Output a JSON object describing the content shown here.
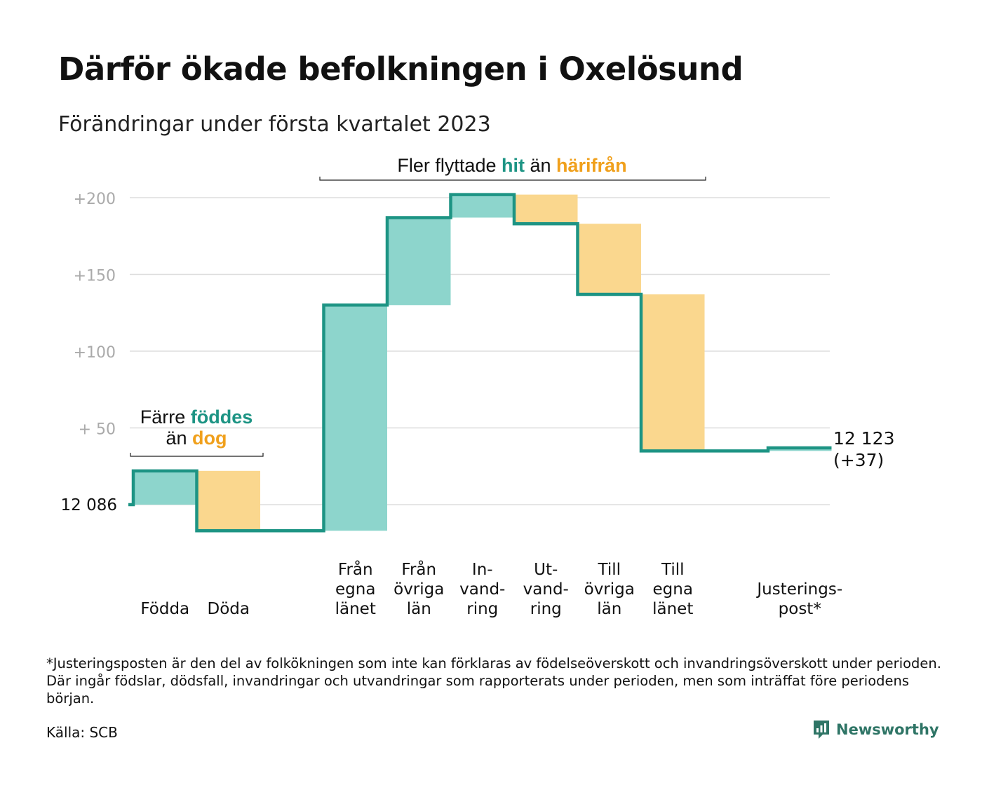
{
  "title": "Därför ökade befolkningen i Oxelösund",
  "subtitle": "Förändringar under första kvartalet 2023",
  "colors": {
    "increase": "#8dd5cc",
    "decrease": "#fad78e",
    "line": "#1d9484",
    "teal_text": "#1d9484",
    "orange_text": "#f0a01c",
    "grid": "#dddddd",
    "tick_text": "#aaaaaa"
  },
  "annotations": {
    "birth_line1_a": "Färre ",
    "birth_line1_b": "föddes",
    "birth_line2_a": "än ",
    "birth_line2_b": "dog",
    "move_a": "Fler flyttade ",
    "move_b": "hit",
    "move_c": " än ",
    "move_d": "härifrån"
  },
  "chart_data": {
    "type": "waterfall",
    "start_label": "12 086",
    "start_value": 0,
    "end_label_line1": "12 123",
    "end_label_line2": "(+37)",
    "end_value": 37,
    "ylim": [
      -30,
      205
    ],
    "yticks": [
      {
        "value": 0,
        "label": ""
      },
      {
        "value": 50,
        "label": "+ 50"
      },
      {
        "value": 100,
        "label": "+100"
      },
      {
        "value": 150,
        "label": "+150"
      },
      {
        "value": 200,
        "label": "+200"
      }
    ],
    "steps": [
      {
        "category": [
          "Födda"
        ],
        "delta": 22
      },
      {
        "category": [
          "Döda"
        ],
        "delta": -39
      },
      {
        "category": [],
        "delta": 0
      },
      {
        "category": [
          "Från",
          "egna",
          "länet"
        ],
        "delta": 147
      },
      {
        "category": [
          "Från",
          "övriga",
          "län"
        ],
        "delta": 57
      },
      {
        "category": [
          "In-",
          "vand-",
          "ring"
        ],
        "delta": 15
      },
      {
        "category": [
          "Ut-",
          "vand-",
          "ring"
        ],
        "delta": -19
      },
      {
        "category": [
          "Till",
          "övriga",
          "län"
        ],
        "delta": -46
      },
      {
        "category": [
          "Till",
          "egna",
          "länet"
        ],
        "delta": -102
      },
      {
        "category": [],
        "delta": 0
      },
      {
        "category": [
          "Justerings-",
          "post*"
        ],
        "delta": 2
      }
    ]
  },
  "footnote": "*Justeringsposten är den del av folkökningen som inte kan förklaras av födelseöverskott och invandringsöverskott under perioden. Där ingår födslar, dödsfall, invandringar och utvandringar som rapporterats under perioden, men som inträffat före periodens början.",
  "source": "Källa: SCB",
  "brand": {
    "name": "Newsworthy",
    "icon": "newsworthy-logo-icon"
  }
}
